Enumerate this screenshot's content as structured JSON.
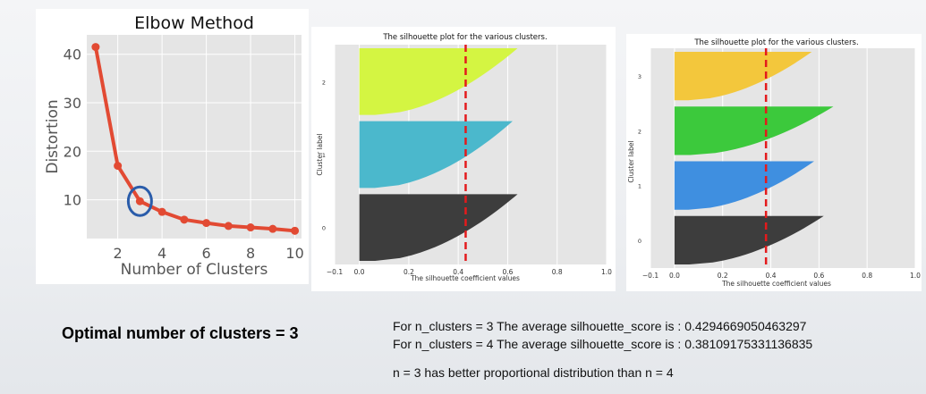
{
  "chart_data": [
    {
      "type": "line",
      "title": "Elbow Method",
      "xlabel": "Number of Clusters",
      "ylabel": "Distortion",
      "x": [
        1,
        2,
        3,
        4,
        5,
        6,
        7,
        8,
        9,
        10
      ],
      "y": [
        41.5,
        17.0,
        9.7,
        7.5,
        5.9,
        5.2,
        4.6,
        4.3,
        4.0,
        3.6
      ],
      "xticks": [
        2,
        4,
        6,
        8,
        10
      ],
      "yticks": [
        10,
        20,
        30,
        40
      ],
      "xlim": [
        0.6,
        10.3
      ],
      "ylim": [
        2.0,
        44.0
      ],
      "grid": true,
      "line_color": "#e24a33",
      "highlight": {
        "x": 3,
        "color": "#2a5caa"
      }
    },
    {
      "type": "area",
      "title": "The silhouette plot for the various clusters.",
      "xlabel": "The silhouette coefficient values",
      "ylabel": "Cluster label",
      "xticks": [
        "−0.1",
        "0.0",
        "0.2",
        "0.4",
        "0.6",
        "0.8",
        "1.0"
      ],
      "xlim": [
        -0.1,
        1.0
      ],
      "average_score": 0.43,
      "clusters": [
        {
          "label": "0",
          "max": 0.64,
          "color": "#3d3d3d"
        },
        {
          "label": "1",
          "max": 0.62,
          "color": "#4bb8cc"
        },
        {
          "label": "2",
          "max": 0.64,
          "color": "#d4f542"
        }
      ]
    },
    {
      "type": "area",
      "title": "The silhouette plot for the various clusters.",
      "xlabel": "The silhouette coefficient values",
      "ylabel": "Cluster label",
      "xticks": [
        "−0.1",
        "0.0",
        "0.2",
        "0.4",
        "0.6",
        "0.8",
        "1.0"
      ],
      "xlim": [
        -0.1,
        1.0
      ],
      "average_score": 0.38,
      "clusters": [
        {
          "label": "0",
          "max": 0.62,
          "color": "#3d3d3d"
        },
        {
          "label": "1",
          "max": 0.58,
          "color": "#3f8fe0"
        },
        {
          "label": "2",
          "max": 0.66,
          "color": "#3cc93c"
        },
        {
          "label": "3",
          "max": 0.57,
          "color": "#f3c73c"
        }
      ]
    }
  ],
  "texts": {
    "conclusion": "Optimal number of clusters = 3",
    "score3": "For n_clusters = 3 The average silhouette_score is : 0.4294669050463297",
    "score4": "For n_clusters = 4 The average silhouette_score is : 0.38109175331136835",
    "comparison": "n = 3 has better proportional distribution than n = 4"
  }
}
